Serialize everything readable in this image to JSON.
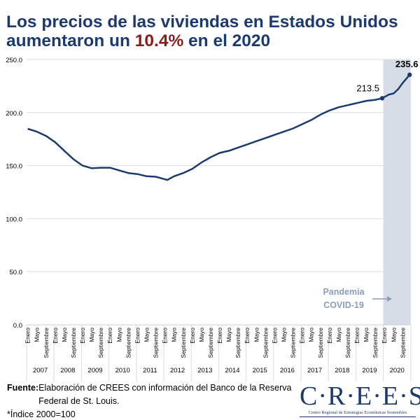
{
  "title": {
    "line1": "Los precios de las viviendas en Estados Unidos",
    "line2_pre": "aumentaron un ",
    "highlight": "10.4%",
    "line2_post": " en el 2020"
  },
  "colors": {
    "line": "#1c3a6e",
    "highlight": "#8b1a1a",
    "shade": "#d6dde7",
    "annotation": "#8a9dba"
  },
  "chart_data": {
    "type": "line",
    "ylim": [
      0,
      250
    ],
    "y_ticks": [
      "0.0",
      "50.0",
      "100.0",
      "150.0",
      "200.0",
      "250.0"
    ],
    "month_labels": [
      "Enero",
      "Mayo",
      "Septiembre"
    ],
    "years": [
      "2007",
      "2008",
      "2009",
      "2010",
      "2011",
      "2012",
      "2013",
      "2014",
      "2015",
      "2016",
      "2017",
      "2018",
      "2019",
      "2020"
    ],
    "series": [
      {
        "x": [
          "2007-01",
          "2007-05",
          "2007-09",
          "2008-01",
          "2008-05",
          "2008-09",
          "2009-01",
          "2009-05",
          "2009-09",
          "2010-01",
          "2010-05",
          "2010-09",
          "2011-01",
          "2011-05",
          "2011-09",
          "2012-02",
          "2012-05",
          "2012-09",
          "2013-01",
          "2013-05",
          "2013-09",
          "2014-01",
          "2014-05",
          "2014-09",
          "2015-01",
          "2015-05",
          "2015-09",
          "2016-01",
          "2016-05",
          "2016-09",
          "2017-01",
          "2017-05",
          "2017-09",
          "2018-01",
          "2018-05",
          "2018-09",
          "2019-01",
          "2019-05",
          "2019-09",
          "2019-12",
          "2020-03",
          "2020-05",
          "2020-07",
          "2020-09",
          "2020-12"
        ],
        "values": [
          184.7,
          182,
          178,
          172,
          164,
          156,
          150,
          147.5,
          148,
          148,
          145.5,
          143,
          142,
          140,
          139.5,
          136.5,
          140,
          143,
          147,
          153,
          158,
          162,
          164,
          167,
          170,
          173,
          176,
          179,
          182,
          185,
          189,
          193,
          198,
          202,
          205,
          207,
          209,
          211,
          212,
          213.5,
          217,
          218,
          222,
          228,
          235.6
        ]
      }
    ],
    "labels": [
      {
        "text": "213.5",
        "x": "2019-12"
      },
      {
        "text": "235.6",
        "x": "2020-12"
      }
    ],
    "shaded_period": {
      "from": "2020-01",
      "to": "2020-12",
      "label_line1": "Pandemia",
      "label_line2": "COVID-19"
    },
    "grid": true
  },
  "footer": {
    "source_label": "Fuente:",
    "source_text": " Elaboración de CREES con información del Banco de la Reserva Federal de St. Louis.",
    "note": "*Índice 2000=100"
  },
  "logo": {
    "name": "C·R·E·E·S",
    "subtitle": "Centro Regional de Estrategias Económicas Sostenibles"
  }
}
